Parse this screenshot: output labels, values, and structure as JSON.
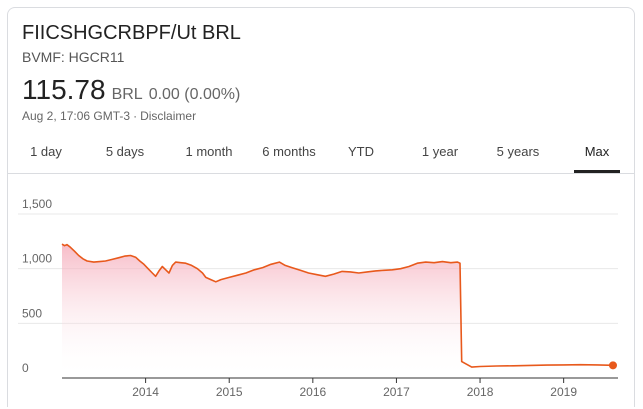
{
  "header": {
    "title": "FIICSHGCRBPF/Ut BRL",
    "exchange": "BVMF: HGCR11",
    "price": "115.78",
    "currency": "BRL",
    "change": "0.00 (0.00%)",
    "timestamp": "Aug 2, 17:06 GMT-3",
    "separator": "·",
    "disclaimer": "Disclaimer"
  },
  "tabs": [
    {
      "label": "1 day"
    },
    {
      "label": "5 days"
    },
    {
      "label": "1 month"
    },
    {
      "label": "6 months"
    },
    {
      "label": "YTD"
    },
    {
      "label": "1 year"
    },
    {
      "label": "5 years"
    },
    {
      "label": "Max",
      "active": true
    }
  ],
  "colors": {
    "line": "#e8591c",
    "fill_top": "#f4a5b5",
    "fill_bottom": "#ffffff",
    "grid": "#e8e8e8",
    "axis": "#333333"
  },
  "chart_data": {
    "type": "area",
    "title": "",
    "xlabel": "",
    "ylabel": "",
    "ylim": [
      0,
      1500
    ],
    "xlim": [
      2013.0,
      2019.65
    ],
    "y_ticks": [
      "0",
      "500",
      "1,000",
      "1,500"
    ],
    "y_tick_values": [
      0,
      500,
      1000,
      1500
    ],
    "x_ticks": [
      "2014",
      "2015",
      "2016",
      "2017",
      "2018",
      "2019"
    ],
    "x_tick_values": [
      2014,
      2015,
      2016,
      2017,
      2018,
      2019
    ],
    "grid": true,
    "series": [
      {
        "x": [
          2013.0,
          2013.03,
          2013.06,
          2013.1,
          2013.15,
          2013.2,
          2013.25,
          2013.3,
          2013.38,
          2013.45,
          2013.52,
          2013.6,
          2013.68,
          2013.75,
          2013.82,
          2013.88,
          2013.93,
          2013.98,
          2014.03,
          2014.08,
          2014.12,
          2014.16,
          2014.2,
          2014.24,
          2014.28,
          2014.32,
          2014.36,
          2014.42,
          2014.48,
          2014.55,
          2014.62,
          2014.68,
          2014.72,
          2014.78,
          2014.84,
          2014.9,
          2015.0,
          2015.1,
          2015.2,
          2015.3,
          2015.4,
          2015.5,
          2015.6,
          2015.67,
          2015.75,
          2015.85,
          2015.95,
          2016.05,
          2016.15,
          2016.25,
          2016.35,
          2016.45,
          2016.55,
          2016.65,
          2016.75,
          2016.85,
          2016.95,
          2017.05,
          2017.15,
          2017.25,
          2017.35,
          2017.45,
          2017.55,
          2017.65,
          2017.73,
          2017.76,
          2017.78,
          2017.9,
          2018.0,
          2018.2,
          2018.4,
          2018.6,
          2018.8,
          2019.0,
          2019.2,
          2019.4,
          2019.59
        ],
        "values": [
          1225,
          1210,
          1220,
          1195,
          1160,
          1120,
          1090,
          1070,
          1060,
          1065,
          1070,
          1085,
          1100,
          1115,
          1120,
          1105,
          1070,
          1040,
          1000,
          960,
          930,
          980,
          1020,
          990,
          960,
          1030,
          1060,
          1055,
          1050,
          1030,
          1000,
          960,
          920,
          900,
          880,
          900,
          920,
          940,
          960,
          990,
          1010,
          1040,
          1060,
          1030,
          1010,
          985,
          960,
          945,
          930,
          950,
          975,
          970,
          960,
          970,
          980,
          985,
          990,
          1000,
          1020,
          1050,
          1060,
          1055,
          1065,
          1055,
          1060,
          1050,
          150,
          100,
          105,
          110,
          112,
          115,
          118,
          120,
          122,
          120,
          115.78
        ]
      }
    ]
  }
}
